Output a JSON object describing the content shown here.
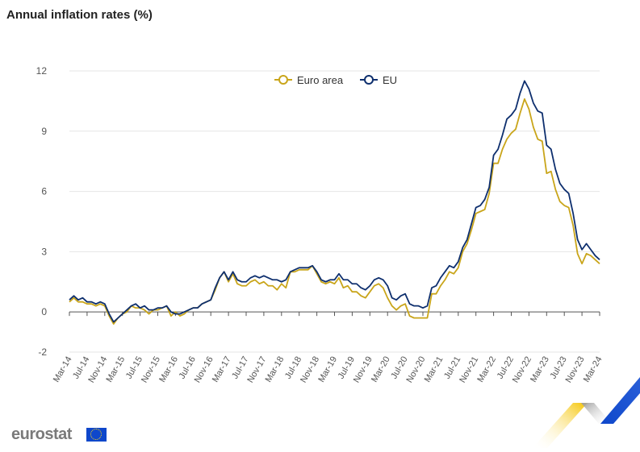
{
  "title": "Annual inflation rates (%)",
  "logo_text": "eurostat",
  "chart_data": {
    "type": "line",
    "ylim": [
      -2,
      12
    ],
    "yticks": [
      -2,
      0,
      3,
      6,
      9,
      12
    ],
    "grid": true,
    "legend_position": "top-center",
    "x_tick_labels": [
      "Mar-14",
      "Jul-14",
      "Nov-14",
      "Mar-15",
      "Jul-15",
      "Nov-15",
      "Mar-16",
      "Jul-16",
      "Nov-16",
      "Mar-17",
      "Jul-17",
      "Nov-17",
      "Mar-18",
      "Jul-18",
      "Nov-18",
      "Mar-19",
      "Jul-19",
      "Nov-19",
      "Mar-20",
      "Jul-20",
      "Nov-20",
      "Mar-21",
      "Jul-21",
      "Nov-21",
      "Mar-22",
      "Jul-22",
      "Nov-22",
      "Mar-23",
      "Jul-23",
      "Nov-23",
      "Mar-24"
    ],
    "x": [
      "2014-03",
      "2014-04",
      "2014-05",
      "2014-06",
      "2014-07",
      "2014-08",
      "2014-09",
      "2014-10",
      "2014-11",
      "2014-12",
      "2015-01",
      "2015-02",
      "2015-03",
      "2015-04",
      "2015-05",
      "2015-06",
      "2015-07",
      "2015-08",
      "2015-09",
      "2015-10",
      "2015-11",
      "2015-12",
      "2016-01",
      "2016-02",
      "2016-03",
      "2016-04",
      "2016-05",
      "2016-06",
      "2016-07",
      "2016-08",
      "2016-09",
      "2016-10",
      "2016-11",
      "2016-12",
      "2017-01",
      "2017-02",
      "2017-03",
      "2017-04",
      "2017-05",
      "2017-06",
      "2017-07",
      "2017-08",
      "2017-09",
      "2017-10",
      "2017-11",
      "2017-12",
      "2018-01",
      "2018-02",
      "2018-03",
      "2018-04",
      "2018-05",
      "2018-06",
      "2018-07",
      "2018-08",
      "2018-09",
      "2018-10",
      "2018-11",
      "2018-12",
      "2019-01",
      "2019-02",
      "2019-03",
      "2019-04",
      "2019-05",
      "2019-06",
      "2019-07",
      "2019-08",
      "2019-09",
      "2019-10",
      "2019-11",
      "2019-12",
      "2020-01",
      "2020-02",
      "2020-03",
      "2020-04",
      "2020-05",
      "2020-06",
      "2020-07",
      "2020-08",
      "2020-09",
      "2020-10",
      "2020-11",
      "2020-12",
      "2021-01",
      "2021-02",
      "2021-03",
      "2021-04",
      "2021-05",
      "2021-06",
      "2021-07",
      "2021-08",
      "2021-09",
      "2021-10",
      "2021-11",
      "2021-12",
      "2022-01",
      "2022-02",
      "2022-03",
      "2022-04",
      "2022-05",
      "2022-06",
      "2022-07",
      "2022-08",
      "2022-09",
      "2022-10",
      "2022-11",
      "2022-12",
      "2023-01",
      "2023-02",
      "2023-03",
      "2023-04",
      "2023-05",
      "2023-06",
      "2023-07",
      "2023-08",
      "2023-09",
      "2023-10",
      "2023-11",
      "2023-12",
      "2024-01",
      "2024-02",
      "2024-03"
    ],
    "series": [
      {
        "name": "Euro area",
        "color": "#c9a51a",
        "values": [
          0.5,
          0.7,
          0.5,
          0.5,
          0.4,
          0.4,
          0.3,
          0.4,
          0.3,
          -0.2,
          -0.6,
          -0.3,
          -0.1,
          0.0,
          0.3,
          0.2,
          0.2,
          0.1,
          -0.1,
          0.1,
          0.1,
          0.2,
          0.3,
          -0.2,
          0.0,
          -0.2,
          -0.1,
          0.1,
          0.2,
          0.2,
          0.4,
          0.5,
          0.6,
          1.1,
          1.7,
          2.0,
          1.5,
          1.9,
          1.4,
          1.3,
          1.3,
          1.5,
          1.6,
          1.4,
          1.5,
          1.3,
          1.3,
          1.1,
          1.4,
          1.2,
          2.0,
          2.0,
          2.1,
          2.1,
          2.1,
          2.3,
          1.9,
          1.5,
          1.4,
          1.5,
          1.4,
          1.7,
          1.2,
          1.3,
          1.0,
          1.0,
          0.8,
          0.7,
          1.0,
          1.3,
          1.4,
          1.2,
          0.7,
          0.3,
          0.1,
          0.3,
          0.4,
          -0.2,
          -0.3,
          -0.3,
          -0.3,
          -0.3,
          0.9,
          0.9,
          1.3,
          1.6,
          2.0,
          1.9,
          2.2,
          3.0,
          3.4,
          4.1,
          4.9,
          5.0,
          5.1,
          5.9,
          7.4,
          7.4,
          8.1,
          8.6,
          8.9,
          9.1,
          9.9,
          10.6,
          10.1,
          9.2,
          8.6,
          8.5,
          6.9,
          7.0,
          6.1,
          5.5,
          5.3,
          5.2,
          4.3,
          2.9,
          2.4,
          2.9,
          2.8,
          2.6,
          2.4
        ]
      },
      {
        "name": "EU",
        "color": "#0e2f6e",
        "values": [
          0.6,
          0.8,
          0.6,
          0.7,
          0.5,
          0.5,
          0.4,
          0.5,
          0.4,
          -0.1,
          -0.5,
          -0.3,
          -0.1,
          0.1,
          0.3,
          0.4,
          0.2,
          0.3,
          0.1,
          0.1,
          0.2,
          0.2,
          0.3,
          0.0,
          -0.1,
          -0.1,
          0.0,
          0.1,
          0.2,
          0.2,
          0.4,
          0.5,
          0.6,
          1.2,
          1.7,
          2.0,
          1.6,
          2.0,
          1.6,
          1.5,
          1.5,
          1.7,
          1.8,
          1.7,
          1.8,
          1.7,
          1.6,
          1.6,
          1.5,
          1.6,
          2.0,
          2.1,
          2.2,
          2.2,
          2.2,
          2.3,
          2.0,
          1.6,
          1.5,
          1.6,
          1.6,
          1.9,
          1.6,
          1.6,
          1.4,
          1.4,
          1.2,
          1.1,
          1.3,
          1.6,
          1.7,
          1.6,
          1.3,
          0.7,
          0.6,
          0.8,
          0.9,
          0.4,
          0.3,
          0.3,
          0.2,
          0.3,
          1.2,
          1.3,
          1.7,
          2.0,
          2.3,
          2.2,
          2.5,
          3.2,
          3.6,
          4.4,
          5.2,
          5.3,
          5.6,
          6.2,
          7.8,
          8.1,
          8.8,
          9.6,
          9.8,
          10.1,
          10.9,
          11.5,
          11.1,
          10.4,
          10.0,
          9.9,
          8.3,
          8.1,
          7.1,
          6.4,
          6.1,
          5.9,
          4.9,
          3.6,
          3.1,
          3.4,
          3.1,
          2.8,
          2.6
        ]
      }
    ]
  }
}
